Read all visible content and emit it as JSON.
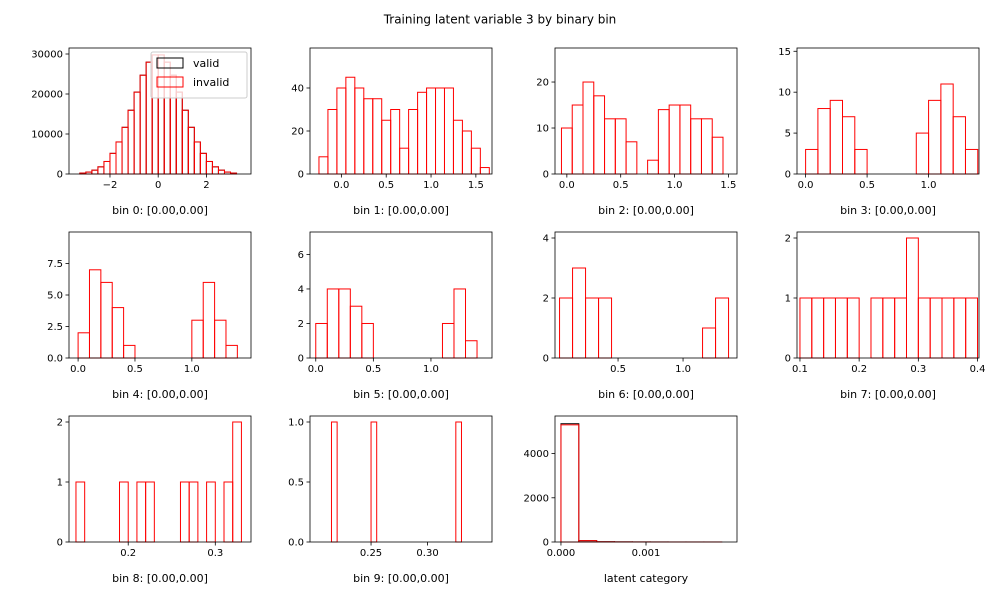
{
  "title": "Training latent variable 3 by binary bin",
  "chart_data": [
    {
      "type": "histogram",
      "xlabel": "bin 0: [0.00,0.00]",
      "legend": "upper right",
      "bins": [
        -3.25,
        -3,
        -2.75,
        -2.5,
        -2.25,
        -2,
        -1.75,
        -1.5,
        -1.25,
        -1,
        -0.75,
        -0.5,
        -0.25,
        0,
        0.25,
        0.5,
        0.75,
        1,
        1.25,
        1.5,
        1.75,
        2,
        2.25,
        2.5,
        2.75,
        3,
        3.25
      ],
      "series": [
        {
          "name": "valid",
          "color": "#000000",
          "values": [
            230,
            480,
            960,
            1790,
            3130,
            5160,
            8010,
            11670,
            15940,
            20470,
            24700,
            27960,
            29770,
            29770,
            27960,
            24700,
            20470,
            15940,
            11670,
            8010,
            5160,
            3130,
            1790,
            960,
            480,
            230
          ]
        },
        {
          "name": "invalid",
          "color": "#ff0000",
          "values": [
            230,
            480,
            960,
            1790,
            3130,
            5160,
            8010,
            11670,
            15940,
            20470,
            24700,
            27960,
            29770,
            29770,
            27960,
            24700,
            20470,
            15940,
            11670,
            8010,
            5160,
            3130,
            1790,
            960,
            480,
            230
          ]
        }
      ],
      "xlim": [
        -3.7,
        3.85
      ],
      "xticks": [
        {
          "value": -2,
          "label": "−2"
        },
        0,
        2
      ],
      "ylim": [
        0,
        31500
      ],
      "yticks": [
        0,
        10000,
        20000,
        30000
      ]
    },
    {
      "type": "histogram",
      "xlabel": "bin 1: [0.00,0.00]",
      "bins": [
        -0.25,
        -0.15,
        -0.05,
        0.05,
        0.15,
        0.25,
        0.35,
        0.45,
        0.55,
        0.65,
        0.75,
        0.85,
        0.95,
        1.05,
        1.15,
        1.25,
        1.35,
        1.45,
        1.55,
        1.65
      ],
      "series": [
        {
          "name": "invalid",
          "color": "#ff0000",
          "values": [
            8,
            30,
            40,
            45,
            40,
            35,
            35,
            25,
            30,
            12,
            30,
            38,
            40,
            40,
            40,
            25,
            20,
            12,
            3
          ]
        }
      ],
      "xlim": [
        -0.35,
        1.68
      ],
      "xticks": [
        {
          "value": 0,
          "label": "0.0"
        },
        0.5,
        {
          "value": 1,
          "label": "1.0"
        },
        1.5
      ],
      "ylim": [
        0,
        58.6
      ],
      "yticks": [
        0,
        20,
        40
      ]
    },
    {
      "type": "histogram",
      "xlabel": "bin 2: [0.00,0.00]",
      "bins": [
        -0.05,
        0.05,
        0.15,
        0.25,
        0.35,
        0.45,
        0.55,
        0.65,
        0.75,
        0.85,
        0.95,
        1.05,
        1.15,
        1.25,
        1.35,
        1.45
      ],
      "series": [
        {
          "name": "invalid",
          "color": "#ff0000",
          "values": [
            10,
            15,
            20,
            17,
            12,
            12,
            7,
            0,
            3,
            14,
            15,
            15,
            12,
            12,
            8
          ]
        }
      ],
      "xlim": [
        -0.11,
        1.58
      ],
      "xticks": [
        {
          "value": 0,
          "label": "0.0"
        },
        0.5,
        {
          "value": 1,
          "label": "1.0"
        },
        1.5
      ],
      "ylim": [
        0,
        27.4
      ],
      "yticks": [
        0,
        10,
        20
      ]
    },
    {
      "type": "histogram",
      "xlabel": "bin 3: [0.00,0.00]",
      "bins": [
        0,
        0.1,
        0.2,
        0.3,
        0.4,
        0.5,
        0.6,
        0.7,
        0.8,
        0.9,
        1,
        1.1,
        1.2,
        1.3,
        1.4
      ],
      "series": [
        {
          "name": "invalid",
          "color": "#ff0000",
          "values": [
            3,
            8,
            9,
            7,
            3,
            0,
            0,
            0,
            0,
            5,
            9,
            11,
            7,
            3
          ]
        }
      ],
      "xlim": [
        -0.07,
        1.41
      ],
      "xticks": [
        {
          "value": 0,
          "label": "0.0"
        },
        0.5,
        {
          "value": 1,
          "label": "1.0"
        }
      ],
      "ylim": [
        0,
        15.4
      ],
      "yticks": [
        0,
        5,
        10,
        15
      ]
    },
    {
      "type": "histogram",
      "xlabel": "bin 4: [0.00,0.00]",
      "bins": [
        0,
        0.1,
        0.2,
        0.3,
        0.4,
        0.5,
        0.6,
        0.7,
        0.8,
        0.9,
        1,
        1.1,
        1.2,
        1.3,
        1.4
      ],
      "series": [
        {
          "name": "invalid",
          "color": "#ff0000",
          "values": [
            2,
            7,
            6,
            4,
            1,
            0,
            0,
            0,
            0,
            0,
            3,
            6,
            3,
            1
          ]
        }
      ],
      "xlim": [
        -0.08,
        1.52
      ],
      "xticks": [
        {
          "value": 0,
          "label": "0.0"
        },
        0.5,
        {
          "value": 1,
          "label": "1.0"
        }
      ],
      "ylim": [
        0,
        10
      ],
      "yticks": [
        {
          "value": 0,
          "label": "0.0"
        },
        2.5,
        {
          "value": 5,
          "label": "5.0"
        },
        7.5
      ]
    },
    {
      "type": "histogram",
      "xlabel": "bin 5: [0.00,0.00]",
      "bins": [
        0,
        0.1,
        0.2,
        0.3,
        0.4,
        0.5,
        0.6,
        0.7,
        0.8,
        0.9,
        1,
        1.1,
        1.2,
        1.3,
        1.4
      ],
      "series": [
        {
          "name": "invalid",
          "color": "#ff0000",
          "values": [
            2,
            4,
            4,
            3,
            2,
            0,
            0,
            0,
            0,
            0,
            0,
            2,
            4,
            1
          ]
        }
      ],
      "xlim": [
        -0.05,
        1.53
      ],
      "xticks": [
        {
          "value": 0,
          "label": "0.0"
        },
        0.5,
        {
          "value": 1,
          "label": "1.0"
        }
      ],
      "ylim": [
        0,
        7.3
      ],
      "yticks": [
        0,
        2,
        4,
        6
      ]
    },
    {
      "type": "histogram",
      "xlabel": "bin 6: [0.00,0.00]",
      "bins": [
        0.05,
        0.15,
        0.25,
        0.35,
        0.45,
        0.55,
        0.65,
        0.75,
        0.85,
        0.95,
        1.05,
        1.15,
        1.25,
        1.35
      ],
      "series": [
        {
          "name": "invalid",
          "color": "#ff0000",
          "values": [
            2,
            3,
            2,
            2,
            0,
            0,
            0,
            0,
            0,
            0,
            0,
            1,
            2
          ]
        }
      ],
      "xlim": [
        0.015,
        1.415
      ],
      "xticks": [
        0.5,
        {
          "value": 1,
          "label": "1.0"
        }
      ],
      "ylim": [
        0,
        4.2
      ],
      "yticks": [
        0,
        2,
        4
      ]
    },
    {
      "type": "histogram",
      "xlabel": "bin 7: [0.00,0.00]",
      "bins": [
        0.1,
        0.12,
        0.14,
        0.16,
        0.18,
        0.2,
        0.22,
        0.24,
        0.26,
        0.28,
        0.3,
        0.32,
        0.34,
        0.36,
        0.38,
        0.4
      ],
      "series": [
        {
          "name": "invalid",
          "color": "#ff0000",
          "values": [
            1,
            1,
            1,
            1,
            1,
            0,
            1,
            1,
            1,
            2,
            1,
            1,
            1,
            1,
            1
          ]
        }
      ],
      "xlim": [
        0.095,
        0.4025
      ],
      "xticks": [
        0.1,
        0.2,
        0.3,
        0.4
      ],
      "ylim": [
        0,
        2.1
      ],
      "yticks": [
        0,
        1,
        2
      ]
    },
    {
      "type": "histogram",
      "xlabel": "bin 8: [0.00,0.00]",
      "bins": [
        0.14,
        0.15,
        0.16,
        0.17,
        0.18,
        0.19,
        0.2,
        0.21,
        0.22,
        0.23,
        0.24,
        0.25,
        0.26,
        0.27,
        0.28,
        0.29,
        0.3,
        0.31,
        0.32,
        0.33
      ],
      "series": [
        {
          "name": "invalid",
          "color": "#ff0000",
          "values": [
            1,
            0,
            0,
            0,
            0,
            1,
            0,
            1,
            1,
            0,
            0,
            0,
            1,
            1,
            0,
            1,
            0,
            1,
            2
          ]
        }
      ],
      "xlim": [
        0.132,
        0.341
      ],
      "xticks": [
        0.2,
        0.3
      ],
      "ylim": [
        0,
        2.1
      ],
      "yticks": [
        0,
        1,
        2
      ]
    },
    {
      "type": "histogram",
      "xlabel": "bin 9: [0.00,0.00]",
      "bins": [
        0.215,
        0.22,
        0.225,
        0.23,
        0.235,
        0.24,
        0.245,
        0.25,
        0.255,
        0.26,
        0.265,
        0.27,
        0.275,
        0.28,
        0.285,
        0.29,
        0.295,
        0.3,
        0.305,
        0.31,
        0.315,
        0.32,
        0.325,
        0.33
      ],
      "series": [
        {
          "name": "invalid",
          "color": "#ff0000",
          "values": [
            1,
            0,
            0,
            0,
            0,
            0,
            0,
            1,
            0,
            0,
            0,
            0,
            0,
            0,
            0,
            0,
            0,
            0,
            0,
            0,
            0,
            0,
            1
          ]
        }
      ],
      "xlim": [
        0.196,
        0.357
      ],
      "xticks": [
        0.25,
        {
          "value": 0.3,
          "label": "0.30"
        }
      ],
      "ylim": [
        0,
        1.05
      ],
      "yticks": [
        {
          "value": 0,
          "label": "0.0"
        },
        0.5,
        {
          "value": 1,
          "label": "1.0"
        }
      ]
    },
    {
      "type": "histogram",
      "xlabel": "latent category",
      "bins": [
        0,
        0.00021,
        0.00042,
        0.00063,
        0.00084,
        0.00105,
        0.00126,
        0.00147,
        0.00168,
        0.00189
      ],
      "series": [
        {
          "name": "valid",
          "color": "#000000",
          "values": [
            5350,
            60,
            10,
            5,
            3,
            2,
            1,
            1,
            1
          ]
        },
        {
          "name": "invalid",
          "color": "#ff0000",
          "values": [
            5300,
            60,
            10,
            5,
            3,
            2,
            1,
            1,
            1
          ]
        }
      ],
      "xlim": [
        -7e-05,
        0.00207
      ],
      "xticks": [
        {
          "value": 0,
          "label": "0.000"
        },
        {
          "value": 0.001,
          "label": "0.001"
        }
      ],
      "ylim": [
        0,
        5700
      ],
      "yticks": [
        0,
        2000,
        4000
      ]
    }
  ]
}
